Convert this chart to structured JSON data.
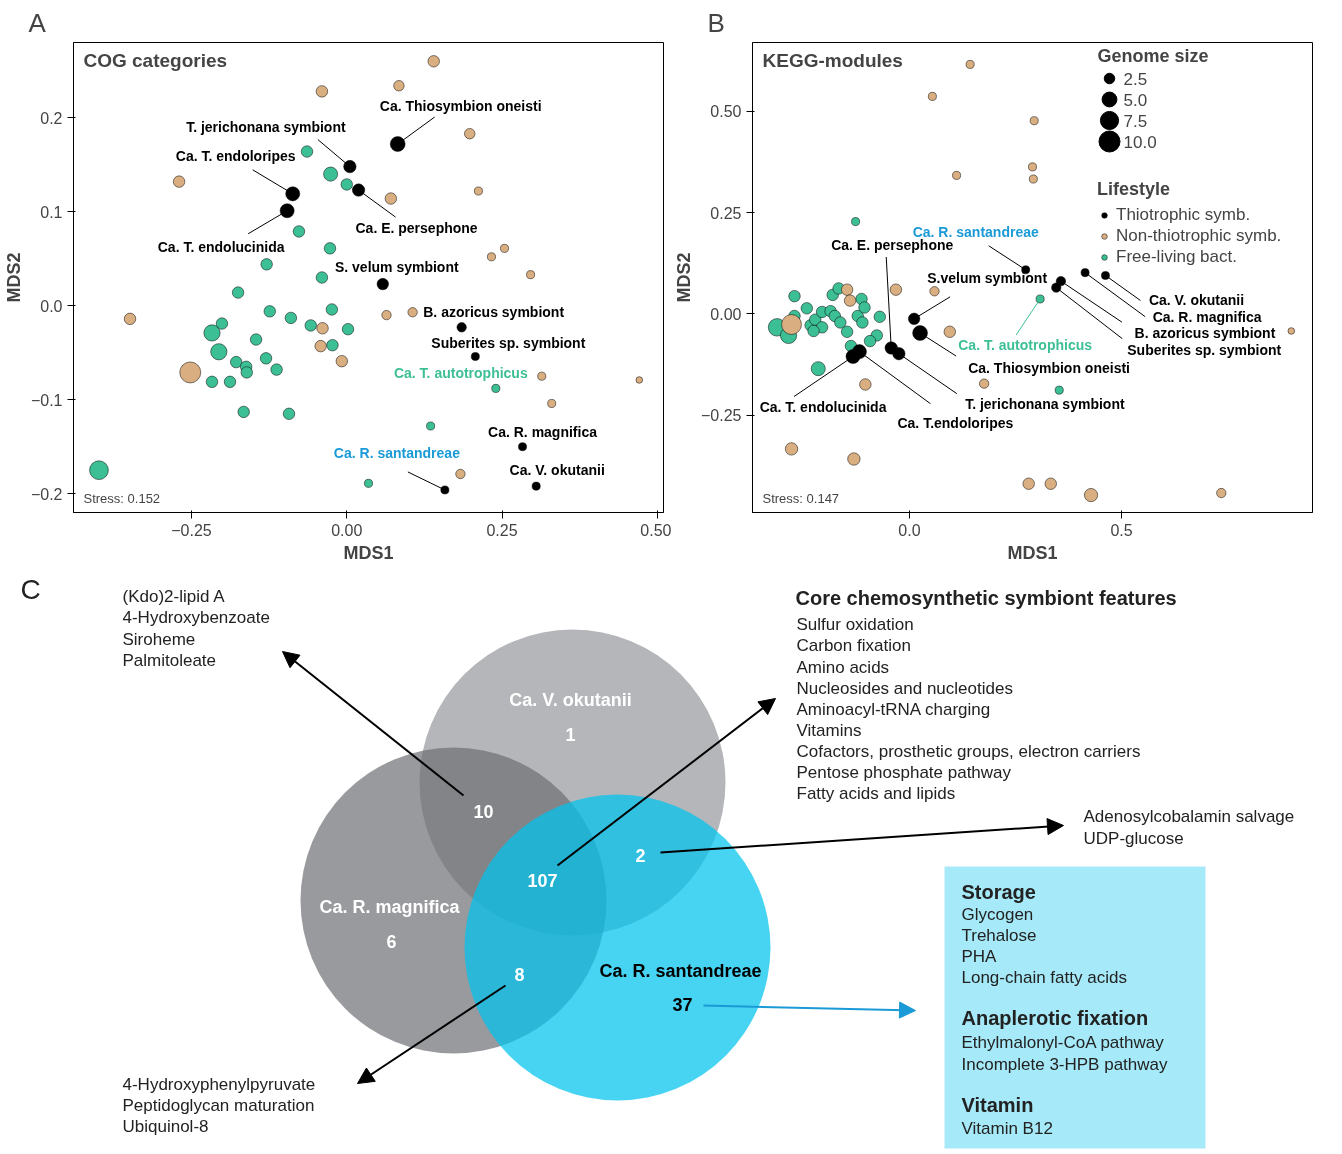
{
  "chart_data": [
    {
      "type": "bubble",
      "title": "COG categories",
      "xlabel": "MDS1",
      "ylabel": "MDS2",
      "marker": "circle",
      "xlim": [
        -0.44,
        0.51
      ],
      "ylim": [
        -0.22,
        0.28
      ],
      "xticks": [
        {
          "value": -0.25,
          "label": "−0.25"
        },
        {
          "value": 0,
          "label": "0.00"
        },
        0.25,
        {
          "value": 0.5,
          "label": "0.50"
        }
      ],
      "yticks": [
        {
          "value": -0.2,
          "label": "−0.2"
        },
        {
          "value": -0.1,
          "label": "−0.1"
        },
        {
          "value": 0,
          "label": "0.0"
        },
        0.1,
        0.2
      ],
      "series": [
        {
          "color": "#000000",
          "x": [
            0.082,
            0.005,
            0.019,
            -0.087,
            -0.096,
            0.058,
            0.185,
            0.207,
            0.283,
            0.305,
            0.158
          ],
          "values": [
            0.172,
            0.148,
            0.123,
            0.119,
            0.101,
            0.023,
            -0.023,
            -0.054,
            -0.15,
            -0.192,
            -0.196
          ],
          "sizes": [
            0.5,
            0.35,
            0.35,
            0.45,
            0.45,
            0.3,
            0.2,
            0.15,
            0.15,
            0.15,
            0.15
          ]
        },
        {
          "color": "#d9ae80",
          "x": [
            -0.04,
            -0.27,
            -0.349,
            -0.252,
            0.064,
            -0.039,
            -0.042,
            -0.008,
            0.071,
            0.14,
            0.084,
            0.198,
            0.212,
            0.254,
            0.233,
            0.296,
            0.106,
            0.314,
            0.471,
            0.33,
            0.183
          ],
          "values": [
            0.228,
            0.132,
            -0.014,
            -0.071,
            -0.01,
            -0.024,
            -0.043,
            -0.059,
            0.114,
            0.26,
            0.234,
            0.183,
            0.122,
            0.061,
            0.052,
            0.033,
            -0.007,
            -0.075,
            -0.079,
            -0.104,
            -0.179
          ],
          "sizes": [
            0.3,
            0.3,
            0.3,
            1.0,
            0.2,
            0.3,
            0.3,
            0.3,
            0.3,
            0.3,
            0.25,
            0.25,
            0.15,
            0.15,
            0.15,
            0.15,
            0.2,
            0.15,
            0.1,
            0.15,
            0.2
          ]
        },
        {
          "color": "#3dbf96",
          "x": [
            -0.064,
            -0.026,
            0.0,
            -0.077,
            -0.027,
            -0.129,
            -0.04,
            -0.175,
            -0.124,
            -0.024,
            -0.09,
            -0.201,
            -0.058,
            0.002,
            -0.217,
            -0.146,
            -0.023,
            -0.206,
            -0.13,
            -0.178,
            -0.162,
            -0.161,
            -0.113,
            -0.217,
            -0.188,
            -0.166,
            -0.093,
            -0.399,
            0.035,
            0.24,
            0.135
          ],
          "values": [
            0.164,
            0.14,
            0.129,
            0.079,
            0.061,
            0.044,
            0.03,
            0.014,
            -0.006,
            -0.004,
            -0.013,
            -0.019,
            -0.021,
            -0.025,
            -0.029,
            -0.036,
            -0.042,
            -0.049,
            -0.056,
            -0.06,
            -0.065,
            -0.071,
            -0.068,
            -0.081,
            -0.081,
            -0.113,
            -0.115,
            -0.175,
            -0.189,
            -0.088,
            -0.128
          ],
          "sizes": [
            0.3,
            0.45,
            0.3,
            0.3,
            0.3,
            0.3,
            0.3,
            0.3,
            0.3,
            0.3,
            0.3,
            0.3,
            0.3,
            0.3,
            0.6,
            0.3,
            0.3,
            0.6,
            0.3,
            0.3,
            0.3,
            0.3,
            0.3,
            0.3,
            0.3,
            0.3,
            0.3,
            0.8,
            0.15,
            0.15,
            0.15
          ]
        }
      ],
      "annotations": [
        "A",
        "Stress: 0.152",
        {
          "text": "Ca. Thiosymbion oneisti",
          "x": 0.082,
          "y": 0.172
        },
        {
          "text": "T. jerichonana symbiont",
          "x": 0.005,
          "y": 0.148
        },
        {
          "text": "Ca. T. endoloripes",
          "x": -0.087,
          "y": 0.119
        },
        {
          "text": "Ca. T. endolucinida",
          "x": -0.096,
          "y": 0.101
        },
        {
          "text": "Ca. E. persephone",
          "x": 0.019,
          "y": 0.123
        },
        {
          "text": "S. velum symbiont",
          "x": 0.058,
          "y": 0.023
        },
        {
          "text": "B. azoricus symbiont",
          "x": 0.185,
          "y": -0.023
        },
        {
          "text": "Suberites sp. symbiont",
          "x": 0.207,
          "y": -0.054
        },
        {
          "text": "Ca. T. autotrophicus",
          "x": 0.24,
          "y": -0.088
        },
        {
          "text": "Ca. R. magnifica",
          "x": 0.283,
          "y": -0.15
        },
        {
          "text": "Ca. V. okutanii",
          "x": 0.305,
          "y": -0.192
        },
        {
          "text": "Ca. R. santandreae",
          "x": 0.158,
          "y": -0.196
        }
      ]
    },
    {
      "type": "bubble",
      "title": "KEGG-modules",
      "xlabel": "MDS1",
      "ylabel": "MDS2",
      "marker": "circle",
      "legend": "top right",
      "legend_title": "Lifestyle",
      "size_legend": [
        2.5,
        {
          "value": 5,
          "label": "5.0"
        },
        7.5,
        {
          "value": 10,
          "label": "10.0"
        }
      ],
      "xlim": [
        -0.37,
        0.95
      ],
      "ylim": [
        -0.49,
        0.67
      ],
      "xticks": [
        {
          "value": 0,
          "label": "0.0"
        },
        0.5
      ],
      "yticks": [
        {
          "value": -0.25,
          "label": "−0.25"
        },
        {
          "value": 0,
          "label": "0.00"
        },
        0.25,
        {
          "value": 0.5,
          "label": "0.50"
        }
      ],
      "series": [
        {
          "name": "Thiotrophic symb.",
          "color": "#000000",
          "x": [
            0.274,
            -0.043,
            0.011,
            0.025,
            -0.025,
            -0.118,
            -0.133,
            0.462,
            0.414,
            0.357,
            0.346
          ],
          "values": [
            0.109,
            -0.084,
            -0.012,
            -0.047,
            -0.098,
            -0.093,
            -0.105,
            0.095,
            0.102,
            0.081,
            0.065
          ],
          "sizes": [
            1.5,
            3.5,
            3,
            5,
            3.5,
            4.5,
            4.5,
            1.5,
            1.5,
            2,
            2
          ]
        },
        {
          "name": "Non-thiotrophic symb.",
          "color": "#d9ae80",
          "x": [
            0.143,
            0.054,
            0.294,
            0.111,
            0.29,
            0.292,
            -0.147,
            -0.14,
            -0.032,
            0.059,
            0.095,
            -0.278,
            -0.104,
            0.176,
            -0.278,
            -0.131,
            0.281,
            0.333,
            0.428,
            0.735,
            0.9
          ],
          "values": [
            0.616,
            0.537,
            0.477,
            0.342,
            0.363,
            0.333,
            0.06,
            0.033,
            0.06,
            0.056,
            -0.044,
            -0.026,
            -0.174,
            -0.172,
            -0.333,
            -0.358,
            -0.419,
            -0.419,
            -0.447,
            -0.442,
            -0.042
          ],
          "sizes": [
            1.5,
            1.5,
            1.5,
            1.5,
            1.5,
            1.5,
            3,
            3,
            3,
            2,
            3,
            9,
            3,
            2,
            3.5,
            3.5,
            3,
            3,
            4,
            2,
            1
          ]
        },
        {
          "name": "Free-living bact.",
          "color": "#3dbf96",
          "x": [
            -0.127,
            0.308,
            0.353,
            -0.271,
            -0.242,
            -0.271,
            -0.312,
            -0.285,
            -0.233,
            -0.222,
            -0.206,
            -0.186,
            -0.181,
            -0.167,
            -0.176,
            -0.163,
            -0.147,
            -0.122,
            -0.111,
            -0.113,
            -0.106,
            -0.07,
            -0.077,
            -0.093,
            -0.138,
            -0.215,
            -0.206,
            -0.226
          ],
          "values": [
            0.228,
            0.037,
            -0.188,
            0.044,
            0.014,
            -0.005,
            -0.033,
            -0.053,
            -0.028,
            -0.014,
            0.005,
            0.007,
            0.047,
            0.063,
            -0.005,
            -0.021,
            -0.044,
            -0.005,
            -0.021,
            0.037,
            0.016,
            -0.007,
            -0.053,
            -0.067,
            -0.079,
            -0.135,
            -0.033,
            -0.042
          ],
          "sizes": [
            1.5,
            1.5,
            1.5,
            3,
            3,
            3,
            7,
            6,
            3,
            3,
            3,
            3,
            3,
            3,
            3,
            3,
            3,
            3,
            3,
            3,
            3,
            3,
            3,
            3,
            3,
            4.5,
            3,
            3
          ]
        }
      ],
      "annotations": [
        "B",
        "Stress: 0.147",
        "Genome size",
        {
          "text": "Ca. R. santandreae",
          "x": 0.274,
          "y": 0.109
        },
        {
          "text": "Ca. E. persephone",
          "x": -0.043,
          "y": -0.084
        },
        {
          "text": "S.velum symbiont",
          "x": 0.011,
          "y": -0.012
        },
        {
          "text": "Ca. T. autotrophicus",
          "x": 0.308,
          "y": 0.037
        },
        {
          "text": "Ca. Thiosymbion oneisti",
          "x": 0.025,
          "y": -0.047
        },
        {
          "text": "T. jerichonana symbiont",
          "x": -0.025,
          "y": -0.098
        },
        {
          "text": "Ca. T.endoloripes",
          "x": -0.118,
          "y": -0.093
        },
        {
          "text": "Ca. T. endolucinida",
          "x": -0.133,
          "y": -0.105
        },
        {
          "text": "Ca. V. okutanii",
          "x": 0.462,
          "y": 0.095
        },
        {
          "text": "Ca. R. magnifica",
          "x": 0.414,
          "y": 0.102
        },
        {
          "text": "B. azoricus symbiont",
          "x": 0.357,
          "y": 0.081
        },
        {
          "text": "Suberites sp. symbiont",
          "x": 0.346,
          "y": 0.065
        }
      ]
    },
    {
      "type": "other",
      "categories": [
        "Ca. V. okutanii",
        "Ca. R. magnifica",
        "Ca. R. santandreae"
      ],
      "values": [
        1,
        6,
        37
      ],
      "data_labels": true,
      "colors": [
        "#b4b6b9",
        "#6e6f74",
        "#00c4ee"
      ],
      "annotations": [
        "C",
        "(Kdo)2-lipid A",
        "4-Hydroxybenzoate",
        "Siroheme",
        "Palmitoleate",
        "Core chemosynthetic symbiont features",
        "Sulfur oxidation",
        "Carbon fixation",
        "Amino acids",
        "Nucleosides and nucleotides",
        "Aminoacyl-tRNA charging",
        "Vitamins",
        "Cofactors, prosthetic groups, electron carriers",
        "Pentose phosphate pathway",
        "Fatty acids and lipids",
        "Adenosylcobalamin salvage",
        "UDP-glucose",
        "Storage",
        "Glycogen",
        "Trehalose",
        "PHA",
        "Long-chain fatty acids",
        "Anaplerotic fixation",
        "Ethylmalonyl-CoA pathway",
        "Incomplete 3-HPB pathway",
        "Vitamin",
        "Vitamin B12",
        "4-Hydroxyphenylpyruvate",
        "Peptidoglycan maturation",
        "Ubiquinol-8",
        "10",
        "2",
        "8",
        "107"
      ]
    }
  ]
}
